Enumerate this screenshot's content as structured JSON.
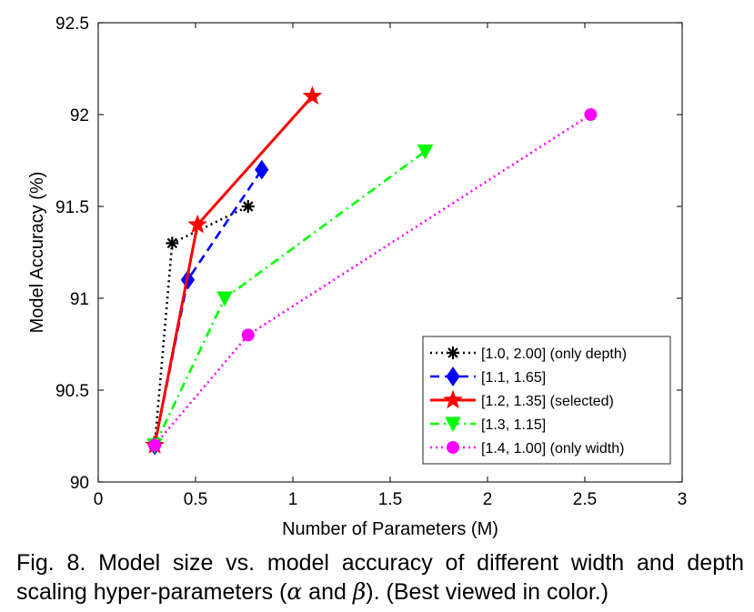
{
  "chart_data": {
    "type": "line",
    "xlabel": "Number of Parameters (M)",
    "ylabel": "Model Accuracy (%)",
    "xlim": [
      0,
      3
    ],
    "ylim": [
      90,
      92.5
    ],
    "xticks": [
      0,
      0.5,
      1,
      1.5,
      2,
      2.5,
      3
    ],
    "xtick_labels": [
      "0",
      "0.5",
      "1",
      "1.5",
      "2",
      "2.5",
      "3"
    ],
    "yticks": [
      90,
      90.5,
      91,
      91.5,
      92,
      92.5
    ],
    "ytick_labels": [
      "90",
      "90.5",
      "91",
      "91.5",
      "92",
      "92.5"
    ],
    "grid": false,
    "legend_position": "lower-right",
    "series": [
      {
        "name": "[1.0, 2.00] (only depth)",
        "color": "#000000",
        "line_style": "dotted",
        "marker": "asterisk",
        "x": [
          0.29,
          0.38,
          0.77
        ],
        "y": [
          90.2,
          91.3,
          91.5
        ]
      },
      {
        "name": "[1.1, 1.65]",
        "color": "#0000ff",
        "line_style": "dashed",
        "marker": "diamond",
        "x": [
          0.29,
          0.46,
          0.84
        ],
        "y": [
          90.2,
          91.1,
          91.7
        ]
      },
      {
        "name": "[1.2, 1.35] (selected)",
        "color": "#ff0000",
        "line_style": "solid",
        "marker": "star",
        "x": [
          0.29,
          0.51,
          1.1
        ],
        "y": [
          90.2,
          91.4,
          92.1
        ]
      },
      {
        "name": "[1.3, 1.15]",
        "color": "#00ff00",
        "line_style": "dashdot",
        "marker": "triangle-down",
        "x": [
          0.29,
          0.65,
          1.68
        ],
        "y": [
          90.2,
          91.0,
          91.8
        ]
      },
      {
        "name": "[1.4, 1.00] (only width)",
        "color": "#ff00ff",
        "line_style": "dotted",
        "marker": "circle",
        "x": [
          0.29,
          0.77,
          2.53
        ],
        "y": [
          90.2,
          90.8,
          92.0
        ]
      }
    ]
  },
  "caption": {
    "part1": "Fig. 8. Model size vs. model accuracy of different width and depth scaling hyper-parameters (",
    "alpha": "α",
    "part2": " and ",
    "beta": "β",
    "part3": "). (Best viewed in color.)"
  }
}
